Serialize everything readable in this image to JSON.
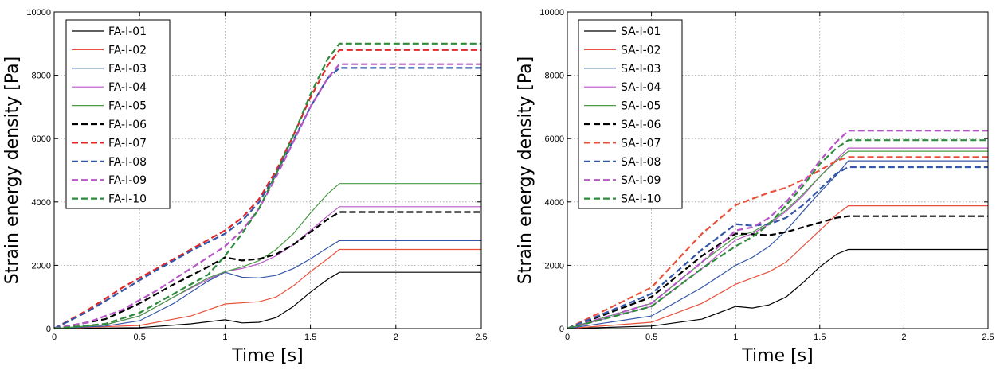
{
  "chart_data": [
    {
      "type": "line",
      "xlabel": "Time [s]",
      "ylabel": "Strain energy density [Pa]",
      "xlim": [
        0,
        2.5
      ],
      "ylim": [
        0,
        10000
      ],
      "xticks": [
        "0",
        "0.5",
        "1",
        "1.5",
        "2",
        "2.5"
      ],
      "yticks": [
        "0",
        "2000",
        "4000",
        "6000",
        "8000",
        "10000"
      ],
      "grid": true,
      "legend": "top-left",
      "series": [
        {
          "name": "FA-I-01",
          "color": "#000000",
          "dashed": false,
          "x": [
            0,
            0.5,
            0.8,
            1.0,
            1.1,
            1.2,
            1.3,
            1.4,
            1.5,
            1.6,
            1.67,
            2.5
          ],
          "y": [
            0,
            30,
            150,
            280,
            180,
            200,
            350,
            700,
            1150,
            1550,
            1780,
            1780
          ]
        },
        {
          "name": "FA-I-02",
          "color": "#e8503c",
          "dashed": false,
          "x": [
            0,
            0.5,
            0.8,
            1.0,
            1.2,
            1.3,
            1.4,
            1.5,
            1.6,
            1.67,
            2.5
          ],
          "y": [
            0,
            100,
            400,
            780,
            850,
            1000,
            1350,
            1800,
            2200,
            2500,
            2500
          ]
        },
        {
          "name": "FA-I-03",
          "color": "#3456a8",
          "dashed": false,
          "x": [
            0,
            0.3,
            0.5,
            0.7,
            0.9,
            1.0,
            1.1,
            1.2,
            1.3,
            1.4,
            1.5,
            1.6,
            1.67,
            2.5
          ],
          "y": [
            0,
            80,
            250,
            800,
            1500,
            1780,
            1620,
            1600,
            1680,
            1900,
            2200,
            2550,
            2780,
            2780
          ]
        },
        {
          "name": "FA-I-04",
          "color": "#b855c8",
          "dashed": false,
          "x": [
            0,
            0.3,
            0.5,
            0.7,
            0.9,
            1.0,
            1.1,
            1.2,
            1.3,
            1.4,
            1.5,
            1.6,
            1.67,
            2.5
          ],
          "y": [
            0,
            120,
            400,
            1000,
            1550,
            1800,
            1900,
            2050,
            2300,
            2650,
            3100,
            3550,
            3850,
            3850
          ]
        },
        {
          "name": "FA-I-05",
          "color": "#4a9a44",
          "dashed": false,
          "x": [
            0,
            0.3,
            0.5,
            0.7,
            0.9,
            1.0,
            1.1,
            1.2,
            1.3,
            1.4,
            1.5,
            1.6,
            1.67,
            2.5
          ],
          "y": [
            0,
            120,
            400,
            1000,
            1600,
            1800,
            1950,
            2150,
            2500,
            3000,
            3650,
            4250,
            4580,
            4580
          ]
        },
        {
          "name": "FA-I-06",
          "color": "#000000",
          "dashed": true,
          "x": [
            0,
            0.3,
            0.5,
            0.7,
            0.9,
            1.0,
            1.1,
            1.2,
            1.3,
            1.4,
            1.5,
            1.6,
            1.67,
            2.5
          ],
          "y": [
            0,
            300,
            800,
            1400,
            1950,
            2250,
            2150,
            2200,
            2350,
            2650,
            3050,
            3450,
            3680,
            3680
          ]
        },
        {
          "name": "FA-I-07",
          "color": "#e02828",
          "dashed": true,
          "x": [
            0,
            0.2,
            0.4,
            0.6,
            0.8,
            1.0,
            1.1,
            1.2,
            1.3,
            1.4,
            1.5,
            1.6,
            1.67,
            2.5
          ],
          "y": [
            0,
            600,
            1300,
            1900,
            2500,
            3100,
            3500,
            4100,
            5000,
            6100,
            7300,
            8300,
            8800,
            8800
          ]
        },
        {
          "name": "FA-I-08",
          "color": "#3456a8",
          "dashed": true,
          "x": [
            0,
            0.2,
            0.4,
            0.6,
            0.8,
            1.0,
            1.1,
            1.2,
            1.3,
            1.4,
            1.5,
            1.6,
            1.67,
            2.5
          ],
          "y": [
            0,
            550,
            1200,
            1850,
            2450,
            3000,
            3400,
            4000,
            4900,
            5950,
            7000,
            7900,
            8230,
            8230
          ]
        },
        {
          "name": "FA-I-09",
          "color": "#b855c8",
          "dashed": true,
          "x": [
            0,
            0.2,
            0.4,
            0.6,
            0.8,
            1.0,
            1.1,
            1.2,
            1.3,
            1.4,
            1.5,
            1.6,
            1.67,
            2.5
          ],
          "y": [
            0,
            200,
            600,
            1200,
            1900,
            2600,
            3100,
            3800,
            4800,
            5900,
            7000,
            7900,
            8350,
            8350
          ]
        },
        {
          "name": "FA-I-10",
          "color": "#2e8b3c",
          "dashed": true,
          "x": [
            0,
            0.3,
            0.5,
            0.7,
            0.9,
            1.0,
            1.1,
            1.2,
            1.3,
            1.4,
            1.5,
            1.6,
            1.67,
            2.5
          ],
          "y": [
            0,
            150,
            500,
            1100,
            1700,
            2300,
            3000,
            3800,
            4900,
            6100,
            7400,
            8500,
            9000,
            9000
          ]
        }
      ]
    },
    {
      "type": "line",
      "xlabel": "Time [s]",
      "ylabel": "Strain energy density [Pa]",
      "xlim": [
        0,
        2.5
      ],
      "ylim": [
        0,
        10000
      ],
      "xticks": [
        "0",
        "0.5",
        "1",
        "1.5",
        "2",
        "2.5"
      ],
      "yticks": [
        "0",
        "2000",
        "4000",
        "6000",
        "8000",
        "10000"
      ],
      "grid": true,
      "legend": "top-left",
      "series": [
        {
          "name": "SA-I-01",
          "color": "#000000",
          "dashed": false,
          "x": [
            0,
            0.5,
            0.8,
            1.0,
            1.1,
            1.2,
            1.3,
            1.4,
            1.5,
            1.6,
            1.67,
            2.5
          ],
          "y": [
            0,
            80,
            300,
            700,
            650,
            750,
            1000,
            1450,
            1950,
            2350,
            2500,
            2500
          ]
        },
        {
          "name": "SA-I-02",
          "color": "#e8503c",
          "dashed": false,
          "x": [
            0,
            0.5,
            0.8,
            1.0,
            1.1,
            1.2,
            1.3,
            1.4,
            1.5,
            1.6,
            1.67,
            2.5
          ],
          "y": [
            0,
            200,
            800,
            1400,
            1600,
            1800,
            2100,
            2600,
            3100,
            3600,
            3880,
            3880
          ]
        },
        {
          "name": "SA-I-03",
          "color": "#3456a8",
          "dashed": false,
          "x": [
            0,
            0.5,
            0.8,
            1.0,
            1.1,
            1.2,
            1.3,
            1.4,
            1.5,
            1.6,
            1.67,
            2.5
          ],
          "y": [
            0,
            400,
            1300,
            2000,
            2250,
            2600,
            3100,
            3700,
            4300,
            4850,
            5300,
            5300
          ]
        },
        {
          "name": "SA-I-04",
          "color": "#b855c8",
          "dashed": false,
          "x": [
            0,
            0.5,
            0.8,
            1.0,
            1.1,
            1.2,
            1.3,
            1.4,
            1.5,
            1.6,
            1.67,
            2.5
          ],
          "y": [
            0,
            700,
            1900,
            2800,
            3000,
            3300,
            3700,
            4200,
            4800,
            5350,
            5700,
            5700
          ]
        },
        {
          "name": "SA-I-05",
          "color": "#4a9a44",
          "dashed": false,
          "x": [
            0,
            0.5,
            0.8,
            1.0,
            1.1,
            1.2,
            1.3,
            1.4,
            1.5,
            1.6,
            1.67,
            2.5
          ],
          "y": [
            0,
            800,
            2100,
            2900,
            3050,
            3350,
            3750,
            4250,
            4800,
            5300,
            5600,
            5600
          ]
        },
        {
          "name": "SA-I-06",
          "color": "#000000",
          "dashed": true,
          "x": [
            0,
            0.5,
            0.8,
            1.0,
            1.1,
            1.2,
            1.3,
            1.4,
            1.5,
            1.6,
            1.67,
            2.5
          ],
          "y": [
            0,
            1000,
            2300,
            3000,
            2980,
            2950,
            3050,
            3200,
            3350,
            3500,
            3550,
            3550
          ]
        },
        {
          "name": "SA-I-07",
          "color": "#e8503c",
          "dashed": true,
          "x": [
            0,
            0.5,
            0.8,
            1.0,
            1.1,
            1.2,
            1.3,
            1.4,
            1.5,
            1.6,
            1.67,
            2.5
          ],
          "y": [
            0,
            1300,
            3000,
            3900,
            4100,
            4300,
            4450,
            4700,
            5000,
            5300,
            5420,
            5420
          ]
        },
        {
          "name": "SA-I-08",
          "color": "#3456a8",
          "dashed": true,
          "x": [
            0,
            0.5,
            0.8,
            1.0,
            1.1,
            1.2,
            1.3,
            1.4,
            1.5,
            1.6,
            1.67,
            2.5
          ],
          "y": [
            0,
            1100,
            2500,
            3300,
            3250,
            3300,
            3500,
            3900,
            4400,
            4900,
            5100,
            5100
          ]
        },
        {
          "name": "SA-I-09",
          "color": "#b855c8",
          "dashed": true,
          "x": [
            0,
            0.5,
            0.8,
            1.0,
            1.1,
            1.2,
            1.3,
            1.4,
            1.5,
            1.6,
            1.67,
            2.5
          ],
          "y": [
            0,
            800,
            2100,
            3100,
            3200,
            3500,
            4000,
            4600,
            5300,
            5900,
            6250,
            6250
          ]
        },
        {
          "name": "SA-I-10",
          "color": "#2e8b3c",
          "dashed": true,
          "x": [
            0,
            0.5,
            0.8,
            1.0,
            1.1,
            1.2,
            1.3,
            1.4,
            1.5,
            1.6,
            1.67,
            2.5
          ],
          "y": [
            0,
            700,
            1900,
            2600,
            2900,
            3300,
            3900,
            4500,
            5200,
            5700,
            5950,
            5950
          ]
        }
      ]
    }
  ]
}
